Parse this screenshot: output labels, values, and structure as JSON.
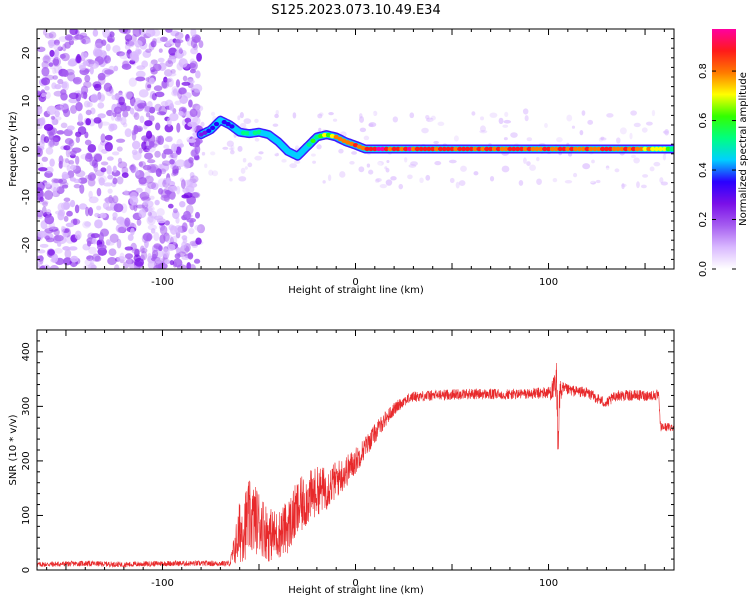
{
  "figure": {
    "title": "S125.2023.073.10.49.E34"
  },
  "colors": {
    "snr_line": "#e8292b",
    "axes": "#000000",
    "colormap": [
      "#ffffff",
      "#d9b8ff",
      "#a55cf0",
      "#7a10e8",
      "#2a00ff",
      "#00d0ff",
      "#00ff80",
      "#33ff00",
      "#ffff00",
      "#ff7a00",
      "#ff1a1a",
      "#ff00a0"
    ]
  },
  "chart_data": [
    {
      "type": "heatmap",
      "xlabel": "Height of straight line (km)",
      "ylabel": "Frequency (Hz)",
      "xlim": [
        -165,
        165
      ],
      "ylim": [
        -25,
        25
      ],
      "xticks": [
        -100,
        0,
        100
      ],
      "yticks": [
        -20,
        -10,
        0,
        10,
        20
      ],
      "grid": false,
      "colorbar": {
        "label": "Normalized spectral amplitude",
        "range": [
          0,
          0.97
        ],
        "ticks": [
          "0.0",
          "0.2",
          "0.4",
          "0.6",
          "0.8"
        ],
        "tick_values": [
          0.0,
          0.2,
          0.4,
          0.6,
          0.8
        ]
      },
      "noise_region": {
        "x_from": -165,
        "x_to": -80,
        "y_range": [
          -25,
          25
        ],
        "amplitude_range": [
          0.05,
          0.25
        ]
      },
      "sparse_noise_region": {
        "x_from": -80,
        "x_to": 165,
        "y_range": [
          -8,
          8
        ],
        "amplitude_range": [
          0.02,
          0.12
        ]
      },
      "ridge": {
        "x": [
          -80,
          -75,
          -70,
          -65,
          -60,
          -55,
          -50,
          -45,
          -40,
          -35,
          -30,
          -25,
          -20,
          -15,
          -10,
          -5,
          0,
          5,
          20,
          50,
          100,
          150,
          165
        ],
        "frequency": [
          3,
          4,
          6,
          5,
          3.5,
          3.2,
          3.5,
          3,
          1.5,
          -0.5,
          -1.5,
          0.5,
          2.5,
          3,
          2.5,
          1.5,
          0.8,
          0,
          0,
          0,
          0,
          0,
          0
        ],
        "amplitude": [
          0.3,
          0.4,
          0.45,
          0.35,
          0.5,
          0.55,
          0.5,
          0.45,
          0.5,
          0.45,
          0.5,
          0.55,
          0.65,
          0.75,
          0.85,
          0.9,
          0.9,
          0.95,
          0.95,
          0.92,
          0.9,
          0.85,
          0.6
        ]
      }
    },
    {
      "type": "line",
      "xlabel": "Height of straight line (km)",
      "ylabel": "SNR (10 * v/v)",
      "xlim": [
        -165,
        165
      ],
      "ylim": [
        0,
        440
      ],
      "xticks": [
        -100,
        0,
        100
      ],
      "yticks": [
        0,
        100,
        200,
        300,
        400
      ],
      "grid": false,
      "series": [
        {
          "x": [
            -165,
            -140,
            -120,
            -100,
            -80,
            -65,
            -60,
            -55,
            -50,
            -45,
            -40,
            -35,
            -30,
            -25,
            -20,
            -15,
            -10,
            -5,
            0,
            5,
            10,
            15,
            20,
            25,
            30,
            40,
            50,
            60,
            70,
            80,
            90,
            100,
            103,
            104,
            105,
            106,
            110,
            120,
            125,
            130,
            135,
            140,
            150,
            157,
            158,
            165
          ],
          "values": [
            10,
            12,
            10,
            12,
            12,
            12,
            70,
            95,
            90,
            65,
            65,
            80,
            110,
            130,
            145,
            150,
            165,
            180,
            200,
            225,
            250,
            275,
            295,
            310,
            318,
            320,
            322,
            323,
            322,
            322,
            323,
            325,
            332,
            330,
            262,
            328,
            330,
            325,
            315,
            305,
            320,
            320,
            320,
            320,
            262,
            262
          ],
          "noise": [
            5,
            5,
            5,
            5,
            5,
            5,
            60,
            70,
            60,
            50,
            45,
            50,
            55,
            50,
            45,
            40,
            35,
            30,
            25,
            20,
            18,
            15,
            12,
            10,
            10,
            10,
            10,
            10,
            10,
            10,
            10,
            12,
            25,
            70,
            60,
            20,
            10,
            10,
            10,
            10,
            10,
            10,
            10,
            10,
            8,
            8
          ]
        }
      ]
    }
  ]
}
